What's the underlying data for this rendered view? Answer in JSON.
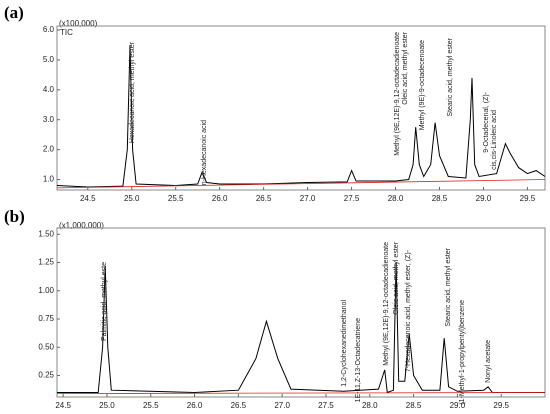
{
  "chart_data": [
    {
      "type": "line",
      "panel_label": "(a)",
      "scale_label": "(x100,000)",
      "signal_label": "TIC",
      "x": [
        24.15,
        24.5,
        24.9,
        24.95,
        24.98,
        25.01,
        25.05,
        25.5,
        25.75,
        25.8,
        25.85,
        26.0,
        26.5,
        27.0,
        27.45,
        27.5,
        27.55,
        28.0,
        28.15,
        28.2,
        28.23,
        28.27,
        28.32,
        28.4,
        28.45,
        28.5,
        28.6,
        28.8,
        28.85,
        28.87,
        28.9,
        28.95,
        29.15,
        29.25,
        29.3,
        29.4,
        29.5,
        29.6,
        29.7
      ],
      "series": [
        {
          "color": "#000000",
          "values": [
            0.8,
            0.75,
            0.78,
            2.0,
            5.5,
            2.0,
            0.85,
            0.8,
            0.85,
            1.25,
            0.9,
            0.85,
            0.85,
            0.9,
            0.92,
            1.3,
            0.95,
            0.95,
            1.0,
            1.5,
            2.75,
            1.5,
            1.1,
            1.5,
            2.9,
            1.8,
            1.1,
            1.05,
            3.0,
            4.4,
            1.5,
            1.1,
            1.2,
            2.2,
            1.9,
            1.4,
            1.2,
            1.3,
            1.1
          ]
        },
        {
          "color": "#e02020",
          "x": [
            24.15,
            29.7
          ],
          "values": [
            0.72,
            1.0
          ]
        }
      ],
      "annotations": [
        "Hexadecanoic acid, methyl ester",
        "n-Hexadecanoic acid",
        "Methyl (9E,12E)-9,12-octadecadienoate",
        "Oleic acid, methyl ester",
        "Methyl (9E)-9-octadecenoate",
        "Stearic acid, methyl ester",
        "9-Octadecenal, (Z)-",
        "cis,cis-Linoleic acid"
      ],
      "xlim": [
        24.15,
        29.7
      ],
      "ylim": [
        0.65,
        6.0
      ],
      "xticks": [
        24.5,
        {
          "value": 25,
          "label": "25.0"
        },
        25.5,
        {
          "value": 26,
          "label": "26.0"
        },
        26.5,
        {
          "value": 27,
          "label": "27.0"
        },
        27.5,
        {
          "value": 28,
          "label": "28.0"
        },
        28.5,
        {
          "value": 29,
          "label": "29.0"
        },
        29.5
      ],
      "yticks": [
        {
          "value": 1,
          "label": "1.0"
        },
        {
          "value": 2,
          "label": "2.0"
        },
        {
          "value": 3,
          "label": "3.0"
        },
        {
          "value": 4,
          "label": "4.0"
        },
        {
          "value": 5,
          "label": "5.0"
        },
        {
          "value": 6,
          "label": "6.0"
        }
      ]
    },
    {
      "type": "line",
      "panel_label": "(b)",
      "scale_label": "(x1,000,000)",
      "x": [
        24.43,
        24.9,
        24.95,
        24.98,
        25.01,
        25.05,
        26.0,
        26.5,
        26.7,
        26.82,
        26.95,
        27.1,
        27.7,
        28.1,
        28.17,
        28.2,
        28.27,
        28.3,
        28.33,
        28.4,
        28.45,
        28.5,
        28.6,
        28.8,
        28.85,
        28.9,
        29.0,
        29.3,
        29.35,
        29.4,
        30.0
      ],
      "series": [
        {
          "color": "#000000",
          "values": [
            0.1,
            0.1,
            0.5,
            1.22,
            0.5,
            0.12,
            0.1,
            0.12,
            0.4,
            0.73,
            0.4,
            0.13,
            0.11,
            0.13,
            0.3,
            0.1,
            0.12,
            1.25,
            0.2,
            0.2,
            0.62,
            0.25,
            0.12,
            0.12,
            0.58,
            0.15,
            0.11,
            0.12,
            0.15,
            0.1,
            0.1
          ]
        },
        {
          "color": "#e02020",
          "x": [
            24.43,
            30.0
          ],
          "values": [
            0.09,
            0.1
          ]
        }
      ],
      "annotations": [
        "Palmitic acid, methyl este",
        "1,2-Cyclohexanedimethanol",
        "1E-11,Z-13-Octadecatriene",
        "Methyl (9E,12E)-9,12-octadecadienoate",
        "Oleic acid, methyl ester",
        "7-Hexadecenoic acid, methyl ester, (Z)-",
        "Stearic acid, methyl ester",
        "(1-Methyl-1-propylpentyl)benzene",
        "Nonyl acetate"
      ],
      "xlim": [
        24.43,
        30.0
      ],
      "ylim": [
        0.06,
        1.52
      ],
      "xticks": [
        24.5,
        {
          "value": 25,
          "label": "25.0"
        },
        25.5,
        {
          "value": 26,
          "label": "26.0"
        },
        26.5,
        {
          "value": 27,
          "label": "27.0"
        },
        27.5,
        {
          "value": 28,
          "label": "28.0"
        },
        28.5,
        {
          "value": 29,
          "label": "29.0"
        },
        29.5
      ],
      "yticks": [
        0.25,
        {
          "value": 0.5,
          "label": "0.50"
        },
        0.75,
        {
          "value": 1,
          "label": "1.00"
        },
        1.25,
        {
          "value": 1.5,
          "label": "1.50"
        }
      ]
    }
  ]
}
